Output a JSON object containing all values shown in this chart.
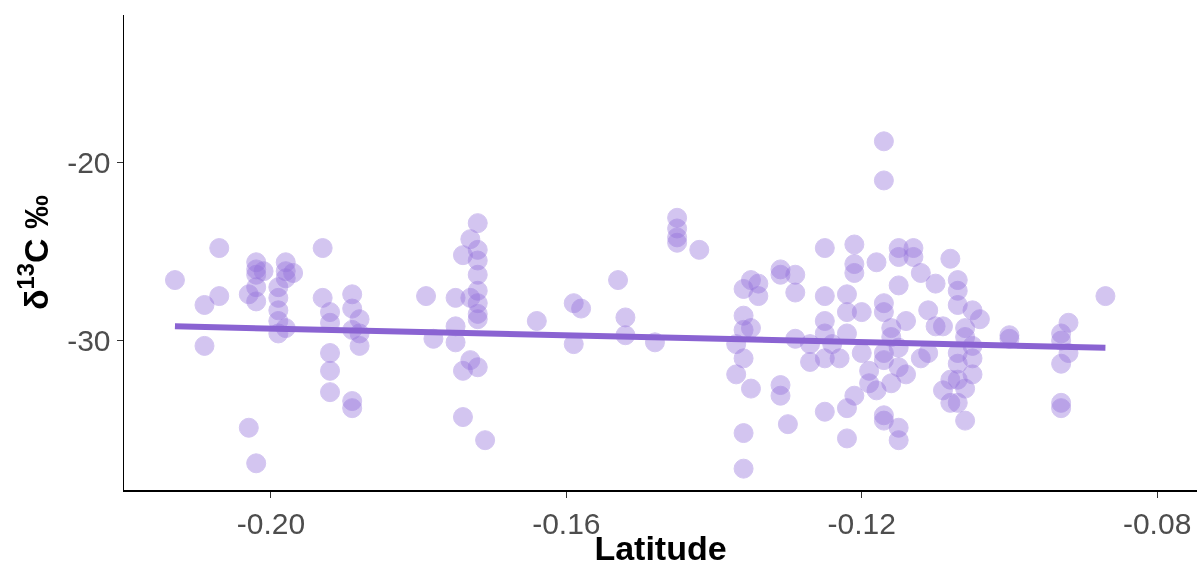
{
  "chart_data": {
    "type": "scatter",
    "xlabel": "Latitude",
    "ylabel": "δ$^{13}$C ‰",
    "xlim": [
      -0.2199,
      -0.0746
    ],
    "ylim": [
      -38.4,
      -11.7
    ],
    "xticks": [
      {
        "value": -0.2,
        "label": "-0.20"
      },
      {
        "value": -0.16,
        "label": "-0.16"
      },
      {
        "value": -0.12,
        "label": "-0.12"
      },
      {
        "value": -0.08,
        "label": "-0.08"
      }
    ],
    "yticks": [
      -30,
      -20
    ],
    "grid": false,
    "legend": false,
    "series": [
      {
        "marker": "circle",
        "color": "#9370db",
        "x": [
          -0.213,
          -0.209,
          -0.209,
          -0.207,
          -0.207,
          -0.203,
          -0.203,
          -0.202,
          -0.202,
          -0.202,
          -0.202,
          -0.202,
          -0.201,
          -0.202,
          -0.198,
          -0.198,
          -0.198,
          -0.199,
          -0.199,
          -0.199,
          -0.199,
          -0.199,
          -0.198,
          -0.197,
          -0.193,
          -0.193,
          -0.192,
          -0.192,
          -0.192,
          -0.192,
          -0.192,
          -0.189,
          -0.189,
          -0.188,
          -0.189,
          -0.188,
          -0.188,
          -0.189,
          -0.189,
          -0.179,
          -0.178,
          -0.175,
          -0.175,
          -0.175,
          -0.173,
          -0.174,
          -0.172,
          -0.174,
          -0.171,
          -0.172,
          -0.173,
          -0.174,
          -0.172,
          -0.172,
          -0.172,
          -0.172,
          -0.173,
          -0.172,
          -0.172,
          -0.172,
          -0.164,
          -0.159,
          -0.158,
          -0.159,
          -0.153,
          -0.152,
          -0.152,
          -0.148,
          -0.145,
          -0.145,
          -0.145,
          -0.145,
          -0.142,
          -0.136,
          -0.135,
          -0.134,
          -0.134,
          -0.136,
          -0.136,
          -0.135,
          -0.137,
          -0.136,
          -0.137,
          -0.135,
          -0.136,
          -0.136,
          -0.131,
          -0.131,
          -0.129,
          -0.129,
          -0.131,
          -0.131,
          -0.13,
          -0.117,
          -0.117,
          -0.125,
          -0.121,
          -0.121,
          -0.121,
          -0.118,
          -0.115,
          -0.115,
          -0.113,
          -0.113,
          -0.112,
          -0.115,
          -0.108,
          -0.11,
          -0.125,
          -0.122,
          -0.122,
          -0.12,
          -0.117,
          -0.117,
          -0.114,
          -0.111,
          -0.109,
          -0.11,
          -0.125,
          -0.125,
          -0.122,
          -0.116,
          -0.116,
          -0.115,
          -0.127,
          -0.124,
          -0.129,
          -0.12,
          -0.117,
          -0.112,
          -0.111,
          -0.127,
          -0.125,
          -0.123,
          -0.119,
          -0.117,
          -0.115,
          -0.114,
          -0.119,
          -0.118,
          -0.116,
          -0.121,
          -0.122,
          -0.125,
          -0.117,
          -0.117,
          -0.115,
          -0.115,
          -0.122,
          -0.109,
          -0.108,
          -0.108,
          -0.107,
          -0.107,
          -0.107,
          -0.105,
          -0.104,
          -0.106,
          -0.106,
          -0.105,
          -0.107,
          -0.105,
          -0.107,
          -0.105,
          -0.107,
          -0.106,
          -0.107,
          -0.106,
          -0.1,
          -0.1,
          -0.093,
          -0.092,
          -0.093,
          -0.092,
          -0.093,
          -0.093,
          -0.093,
          -0.087
        ],
        "values": [
          -26.6,
          -28.0,
          -30.3,
          -24.8,
          -27.5,
          -27.4,
          -34.9,
          -36.9,
          -25.6,
          -26.0,
          -26.3,
          -27.0,
          -26.1,
          -27.8,
          -25.6,
          -26.1,
          -26.5,
          -27.0,
          -27.6,
          -28.3,
          -28.9,
          -29.6,
          -29.3,
          -26.2,
          -24.8,
          -27.6,
          -28.4,
          -29.0,
          -30.7,
          -31.7,
          -32.9,
          -27.4,
          -28.2,
          -28.8,
          -29.4,
          -29.6,
          -30.3,
          -33.4,
          -33.8,
          -27.5,
          -29.9,
          -27.6,
          -29.2,
          -30.1,
          -31.1,
          -31.7,
          -31.5,
          -34.3,
          -35.6,
          -23.4,
          -24.3,
          -25.2,
          -24.9,
          -25.5,
          -26.3,
          -27.2,
          -27.6,
          -27.9,
          -28.5,
          -28.8,
          -28.9,
          -27.9,
          -28.2,
          -30.2,
          -26.6,
          -28.7,
          -29.7,
          -30.1,
          -23.1,
          -23.7,
          -24.2,
          -24.5,
          -24.9,
          -27.1,
          -26.6,
          -26.8,
          -27.5,
          -28.6,
          -29.4,
          -29.3,
          -30.2,
          -31.0,
          -31.9,
          -32.7,
          -35.2,
          -37.2,
          -26.0,
          -26.3,
          -26.3,
          -27.3,
          -32.5,
          -33.1,
          -34.7,
          -18.8,
          -21.0,
          -24.8,
          -24.6,
          -25.7,
          -26.2,
          -25.6,
          -24.8,
          -25.3,
          -24.8,
          -25.3,
          -26.2,
          -26.9,
          -25.4,
          -26.8,
          -27.5,
          -27.4,
          -28.4,
          -28.4,
          -27.9,
          -28.4,
          -28.9,
          -28.3,
          -29.2,
          -29.2,
          -28.9,
          -29.6,
          -29.6,
          -29.3,
          -29.8,
          -30.4,
          -30.2,
          -30.2,
          -29.9,
          -30.7,
          -30.7,
          -31.0,
          -30.7,
          -31.2,
          -31.0,
          -31.0,
          -31.7,
          -31.1,
          -31.5,
          -31.9,
          -32.4,
          -32.8,
          -32.4,
          -33.1,
          -33.8,
          -34.0,
          -34.2,
          -34.5,
          -34.9,
          -35.6,
          -35.5,
          -32.8,
          -32.2,
          -33.5,
          -26.6,
          -27.2,
          -28.0,
          -28.3,
          -28.8,
          -29.3,
          -29.8,
          -30.3,
          -30.7,
          -31.0,
          -31.3,
          -31.9,
          -32.2,
          -32.7,
          -33.5,
          -34.5,
          -29.7,
          -29.9,
          -29.6,
          -29.0,
          -30.0,
          -30.7,
          -31.3,
          -33.5,
          -33.8,
          -27.5
        ]
      },
      {
        "type": "line",
        "color": "#8a63d2",
        "line_style": "solid",
        "x": [
          -0.213,
          -0.087
        ],
        "values": [
          -29.2,
          -30.4
        ]
      }
    ]
  }
}
